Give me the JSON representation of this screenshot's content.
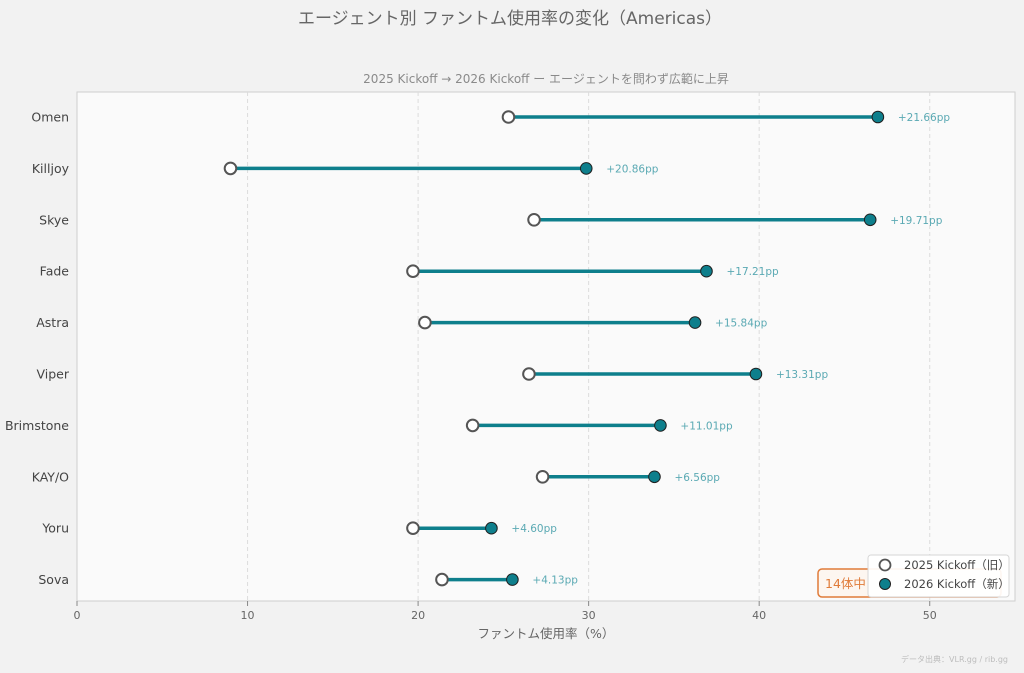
{
  "chart_data": {
    "type": "dumbbell",
    "title": "エージェント別 ファントム使用率の変化（Americas）",
    "subtitle": "2025 Kickoff → 2026 Kickoff ー エージェントを問わず広範に上昇",
    "xlabel": "ファントム使用率（%）",
    "xlim": [
      0,
      55
    ],
    "xticks": [
      0,
      10,
      20,
      30,
      40,
      50
    ],
    "grid": "vertical dashed",
    "categories": [
      "Omen",
      "Killjoy",
      "Skye",
      "Fade",
      "Astra",
      "Viper",
      "Brimstone",
      "KAY/O",
      "Yoru",
      "Sova"
    ],
    "series": [
      {
        "name": "2025 Kickoff（旧）",
        "values": [
          25.3,
          9.0,
          26.8,
          19.7,
          20.4,
          26.5,
          23.2,
          27.3,
          19.7,
          21.4
        ]
      },
      {
        "name": "2026 Kickoff（新）",
        "values": [
          46.96,
          29.86,
          46.51,
          36.91,
          36.24,
          39.81,
          34.21,
          33.86,
          24.3,
          25.53
        ]
      }
    ],
    "delta_labels": [
      "+21.66pp",
      "+20.86pp",
      "+19.71pp",
      "+17.21pp",
      "+15.84pp",
      "+13.31pp",
      "+11.01pp",
      "+6.56pp",
      "+4.60pp",
      "+4.13pp"
    ],
    "annotation": "14体中",
    "legend_position": "bottom-right",
    "source": "データ出典：VLR.gg / rib.gg",
    "colors": {
      "old_fill": "#ffffff",
      "old_stroke": "#555555",
      "new_fill": "#0e7f8c",
      "line": "#0e7f8c",
      "delta_text": "#5aa9b3",
      "annotation": "#e07b39"
    }
  }
}
